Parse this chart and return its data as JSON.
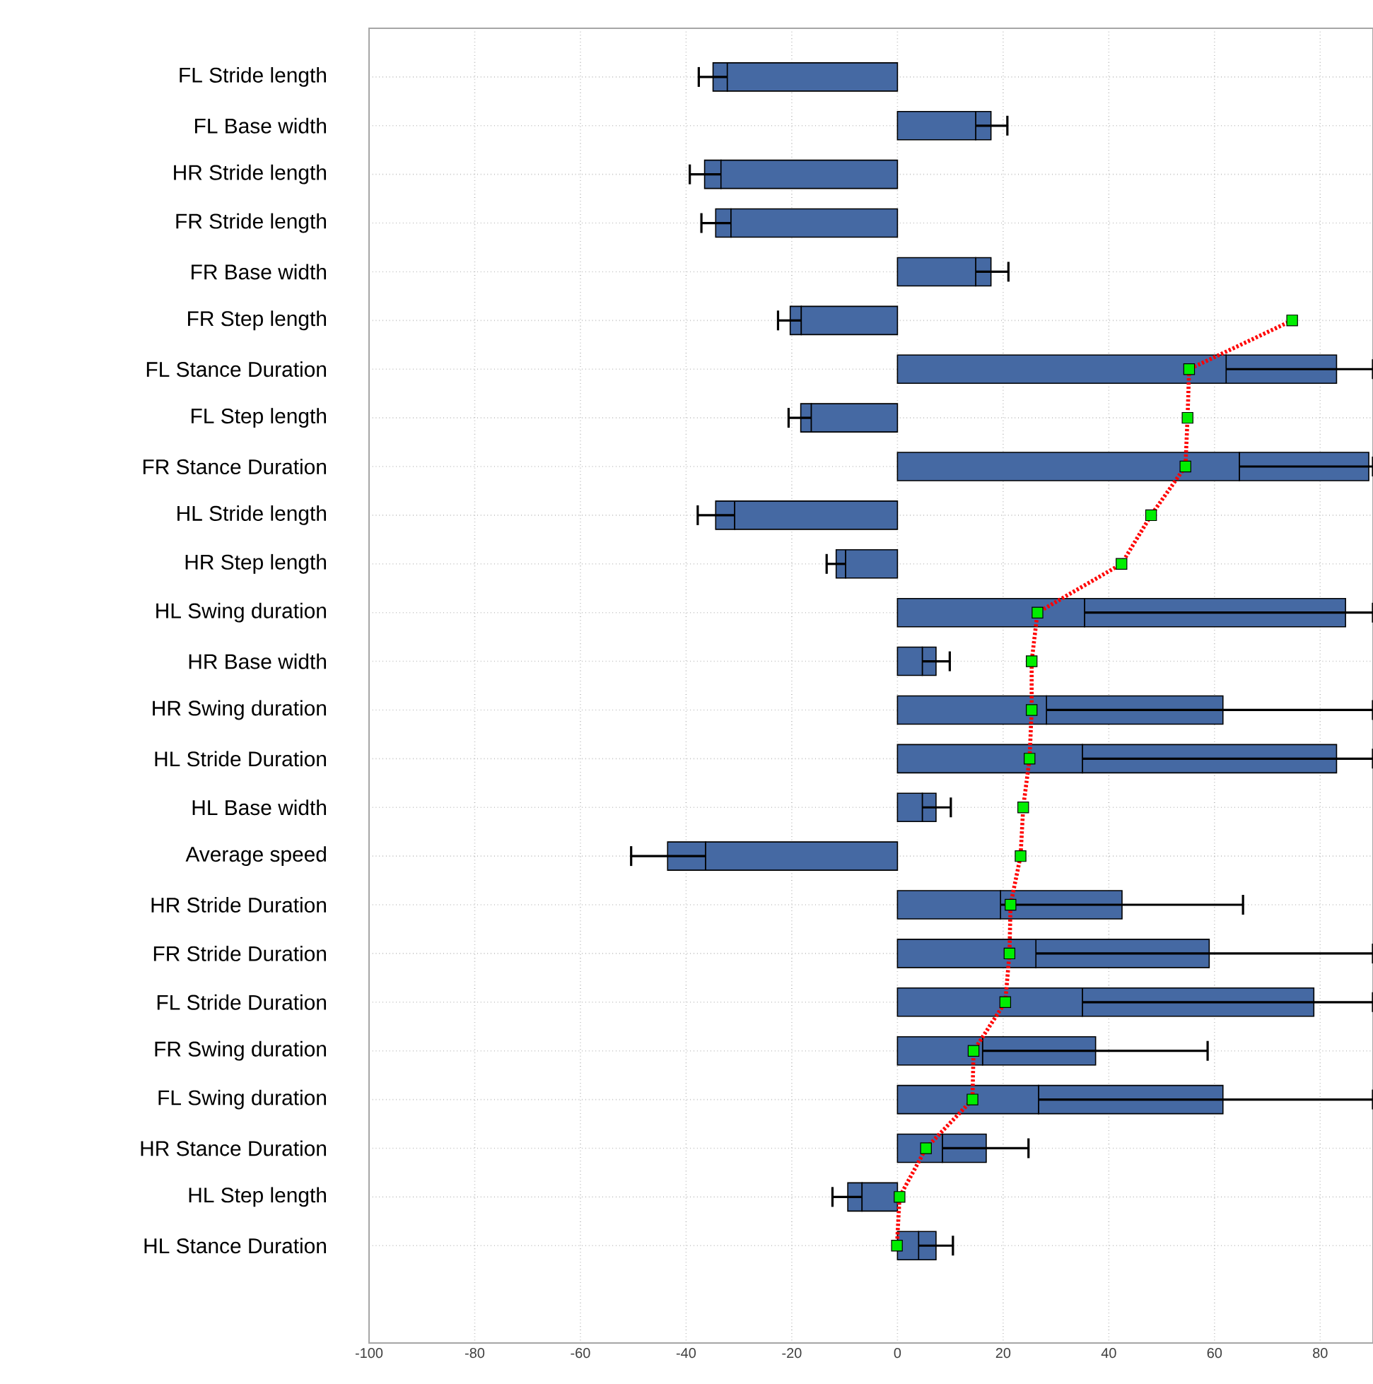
{
  "chart_data": {
    "type": "bar",
    "orientation": "horizontal",
    "stacked": true,
    "grid": true,
    "categories": [
      "FL Stride length",
      "FL Base width",
      "HR Stride length",
      "FR Stride length",
      "FR Base width",
      "FR Step length",
      "FL Stance Duration",
      "FL Step length",
      "FR Stance Duration",
      "HL Stride length",
      "HR Step length",
      "HL Swing duration",
      "HR Base width",
      "HR Swing duration",
      "HL Stride Duration",
      "HL Base width",
      "Average speed",
      "HR Stride Duration",
      "FR Stride Duration",
      "FL Stride Duration",
      "FR Swing duration",
      "FL Swing duration",
      "HR Stance Duration",
      "HL Step length",
      "HL Stance Duration"
    ],
    "series": [
      {
        "color": "#4569a3",
        "values": [
          -32.2,
          14.8,
          -33.4,
          -31.5,
          14.8,
          -18.2,
          62.2,
          -16.3,
          64.7,
          -30.8,
          -9.8,
          35.4,
          4.7,
          28.2,
          35.0,
          4.7,
          -36.3,
          19.5,
          26.2,
          35.0,
          16.1,
          26.7,
          8.5,
          -6.7,
          4.0
        ],
        "errors": [
          [
            -37.6,
            -32.2
          ],
          [
            14.8,
            20.8
          ],
          [
            -39.3,
            -33.4
          ],
          [
            -37.1,
            -31.5
          ],
          [
            14.8,
            21.0
          ],
          [
            -22.6,
            -18.2
          ],
          [
            62.2,
            90
          ],
          [
            -20.6,
            -16.3
          ],
          [
            64.7,
            90
          ],
          [
            -37.8,
            -30.8
          ],
          [
            -13.4,
            -9.8
          ],
          [
            35.4,
            90
          ],
          [
            4.7,
            9.9
          ],
          [
            28.2,
            90
          ],
          [
            35.0,
            90
          ],
          [
            4.7,
            10.1
          ],
          [
            -50.4,
            -36.3
          ],
          [
            19.5,
            65.4
          ],
          [
            26.2,
            90
          ],
          [
            35.0,
            90
          ],
          [
            16.1,
            58.7
          ],
          [
            26.7,
            90
          ],
          [
            8.5,
            24.8
          ],
          [
            -12.3,
            -6.7
          ],
          [
            4.0,
            10.5
          ]
        ]
      },
      {
        "color": "#4569a3",
        "values": [
          -2.7,
          2.9,
          -3.1,
          -2.9,
          2.9,
          -2.1,
          20.9,
          -2.0,
          24.5,
          -3.6,
          -1.8,
          49.4,
          2.6,
          33.4,
          48.1,
          2.6,
          -7.2,
          23.0,
          32.8,
          43.8,
          21.4,
          34.9,
          8.3,
          -2.7,
          3.3
        ]
      },
      {
        "type": "line",
        "color": "#ff0000",
        "line_style": "dotted",
        "marker": "none",
        "values": [
          null,
          null,
          null,
          null,
          null,
          74.7,
          55.2,
          54.9,
          54.5,
          48.0,
          42.4,
          26.5,
          25.4,
          25.4,
          25.0,
          23.8,
          23.3,
          21.4,
          21.2,
          20.4,
          14.4,
          14.2,
          5.4,
          0.4,
          -0.1
        ]
      },
      {
        "type": "scatter",
        "color": "#00ee00",
        "marker": "square",
        "values": [
          null,
          null,
          null,
          null,
          null,
          74.7,
          55.2,
          54.9,
          54.5,
          48.0,
          42.4,
          26.5,
          25.4,
          25.4,
          25.0,
          23.8,
          23.3,
          21.4,
          21.2,
          20.4,
          14.4,
          14.2,
          5.4,
          0.4,
          -0.1
        ]
      }
    ],
    "xlim": [
      -100,
      90
    ],
    "xticks": [
      -100,
      -80,
      -60,
      -40,
      -20,
      0,
      20,
      40,
      60,
      80
    ]
  }
}
